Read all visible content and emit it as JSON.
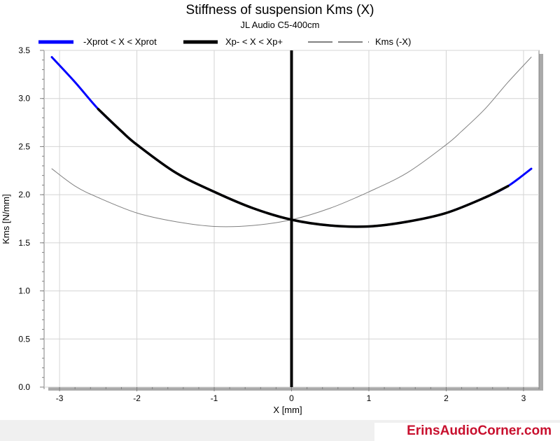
{
  "chart_data": {
    "type": "line",
    "title": "Stiffness of suspension Kms (X)",
    "subtitle": "JL Audio C5-400cm",
    "xlabel": "X [mm]",
    "ylabel": "Kms [N/mm]",
    "xlim": [
      -3.2,
      3.2
    ],
    "ylim": [
      0.0,
      3.5
    ],
    "xticks": [
      -3,
      -2,
      -1,
      0,
      1,
      2,
      3
    ],
    "xtick_labels": [
      "-3",
      "-2",
      "-1",
      "0",
      "1",
      "2",
      "3"
    ],
    "yticks": [
      0.0,
      0.5,
      1.0,
      1.5,
      2.0,
      2.5,
      3.0,
      3.5
    ],
    "ytick_labels": [
      "0.0",
      "0.5",
      "1.0",
      "1.5",
      "2.0",
      "2.5",
      "3.0",
      "3.5"
    ],
    "grid": true,
    "legend_position": "top",
    "series": [
      {
        "name": "-Xprot < X < Xprot",
        "color": "#0000ff",
        "x": [
          -3.1,
          -2.8,
          -2.5,
          -2.2,
          -2.0,
          -1.5,
          -1.0,
          -0.5,
          0.0,
          0.5,
          1.0,
          1.5,
          2.0,
          2.5,
          2.8,
          3.1
        ],
        "y": [
          3.43,
          3.17,
          2.89,
          2.66,
          2.52,
          2.23,
          2.03,
          1.86,
          1.74,
          1.68,
          1.67,
          1.72,
          1.81,
          1.97,
          2.09,
          2.27
        ]
      },
      {
        "name": "Xp- < X < Xp+",
        "color": "#000000",
        "x": [
          -2.5,
          -2.2,
          -2.0,
          -1.5,
          -1.0,
          -0.5,
          0.0,
          0.5,
          1.0,
          1.5,
          2.0,
          2.5,
          2.8
        ],
        "y": [
          2.89,
          2.66,
          2.52,
          2.23,
          2.03,
          1.86,
          1.74,
          1.68,
          1.67,
          1.72,
          1.81,
          1.97,
          2.09
        ]
      },
      {
        "name": "Kms (-X)",
        "color": "#808080",
        "x": [
          -3.1,
          -2.8,
          -2.5,
          -2.0,
          -1.5,
          -1.0,
          -0.5,
          0.0,
          0.5,
          1.0,
          1.5,
          2.0,
          2.2,
          2.5,
          2.8,
          3.1
        ],
        "y": [
          2.27,
          2.09,
          1.97,
          1.81,
          1.72,
          1.67,
          1.68,
          1.74,
          1.86,
          2.03,
          2.23,
          2.52,
          2.66,
          2.89,
          3.17,
          3.43
        ]
      }
    ],
    "annotations": [
      {
        "type": "vertical-line",
        "x": 0,
        "color": "#000000"
      }
    ]
  },
  "watermark": "ErinsAudioCorner.com"
}
